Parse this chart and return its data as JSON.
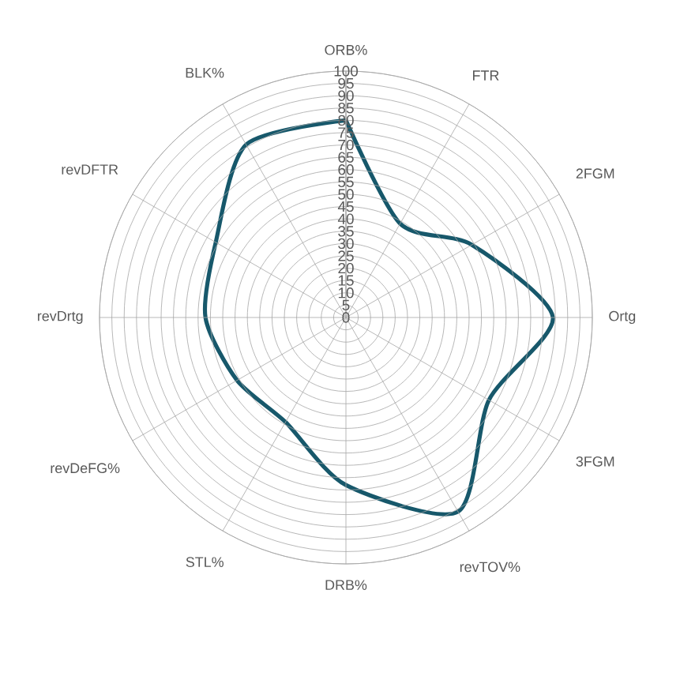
{
  "chart_data": {
    "type": "radar",
    "categories": [
      "ORB%",
      "FTR",
      "2FGM",
      "Ortg",
      "3FGM",
      "revTOV%",
      "DRB%",
      "STL%",
      "revDeFG%",
      "revDrtg",
      "revDFTR",
      "BLK%"
    ],
    "series": [
      {
        "color": "#17586b",
        "values": [
          80,
          44,
          59,
          84,
          67,
          91,
          68,
          49,
          51,
          57,
          61,
          81
        ]
      }
    ],
    "ylim": [
      0,
      100
    ],
    "yticks": [
      0,
      5,
      10,
      15,
      20,
      25,
      30,
      35,
      40,
      45,
      50,
      55,
      60,
      65,
      70,
      75,
      80,
      85,
      90,
      95,
      100
    ],
    "grid": true,
    "line_style": "solid"
  }
}
